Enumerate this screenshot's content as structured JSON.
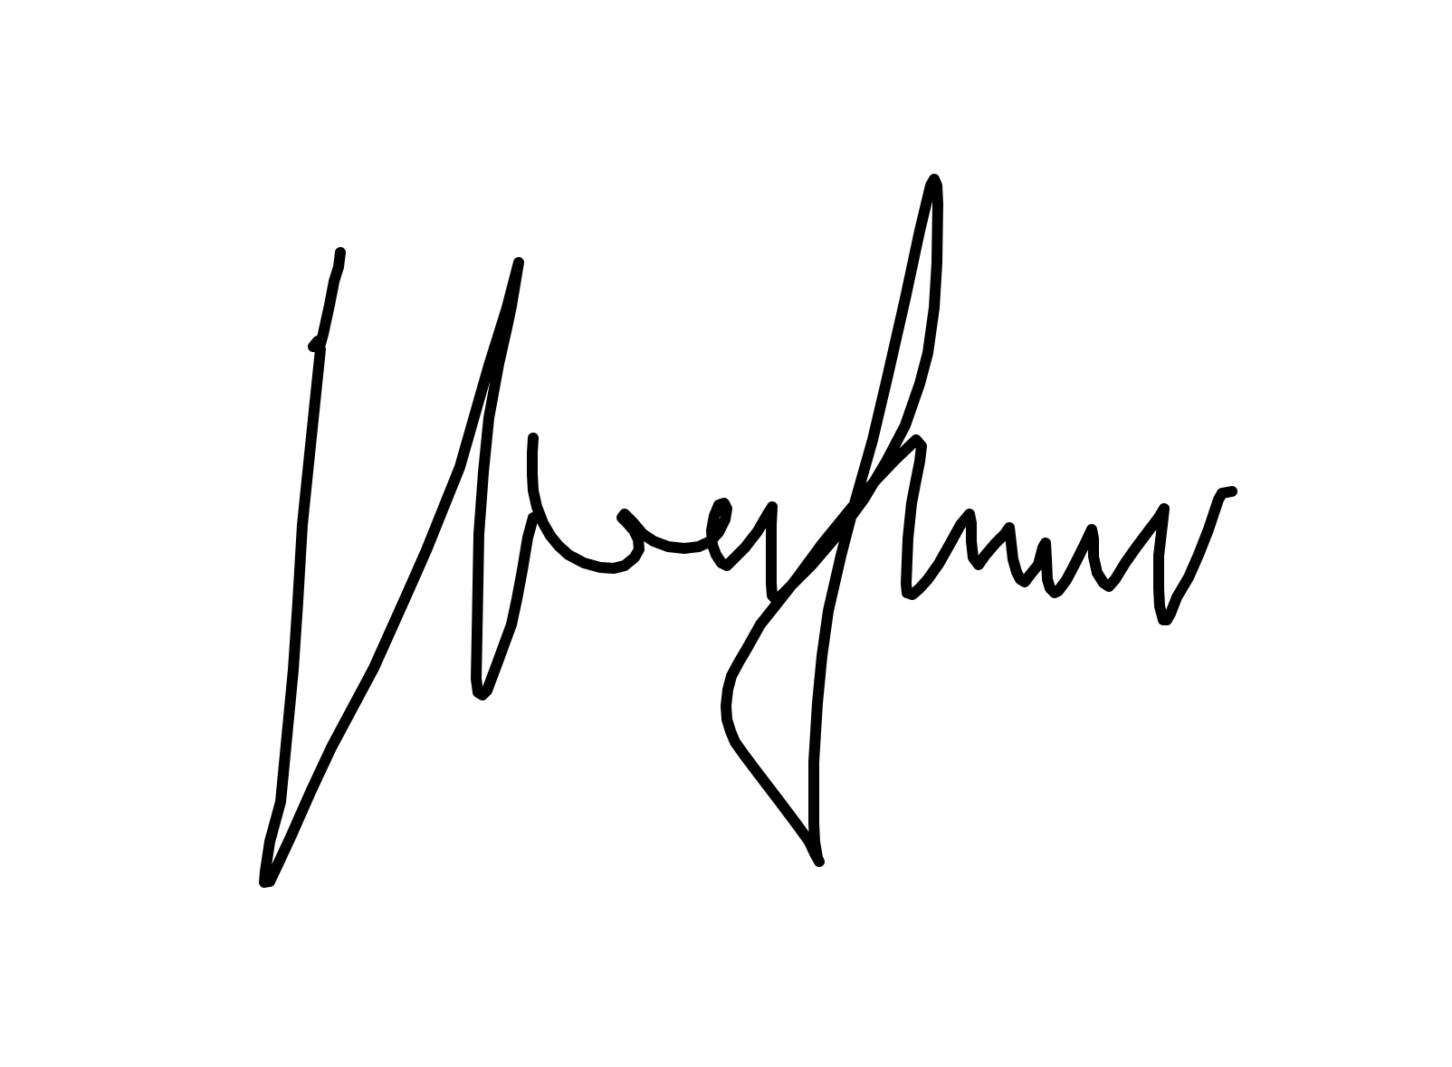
{
  "signature": {
    "icon": "handwritten-signature",
    "ink_color": "#000000",
    "background_color": "#ffffff"
  }
}
